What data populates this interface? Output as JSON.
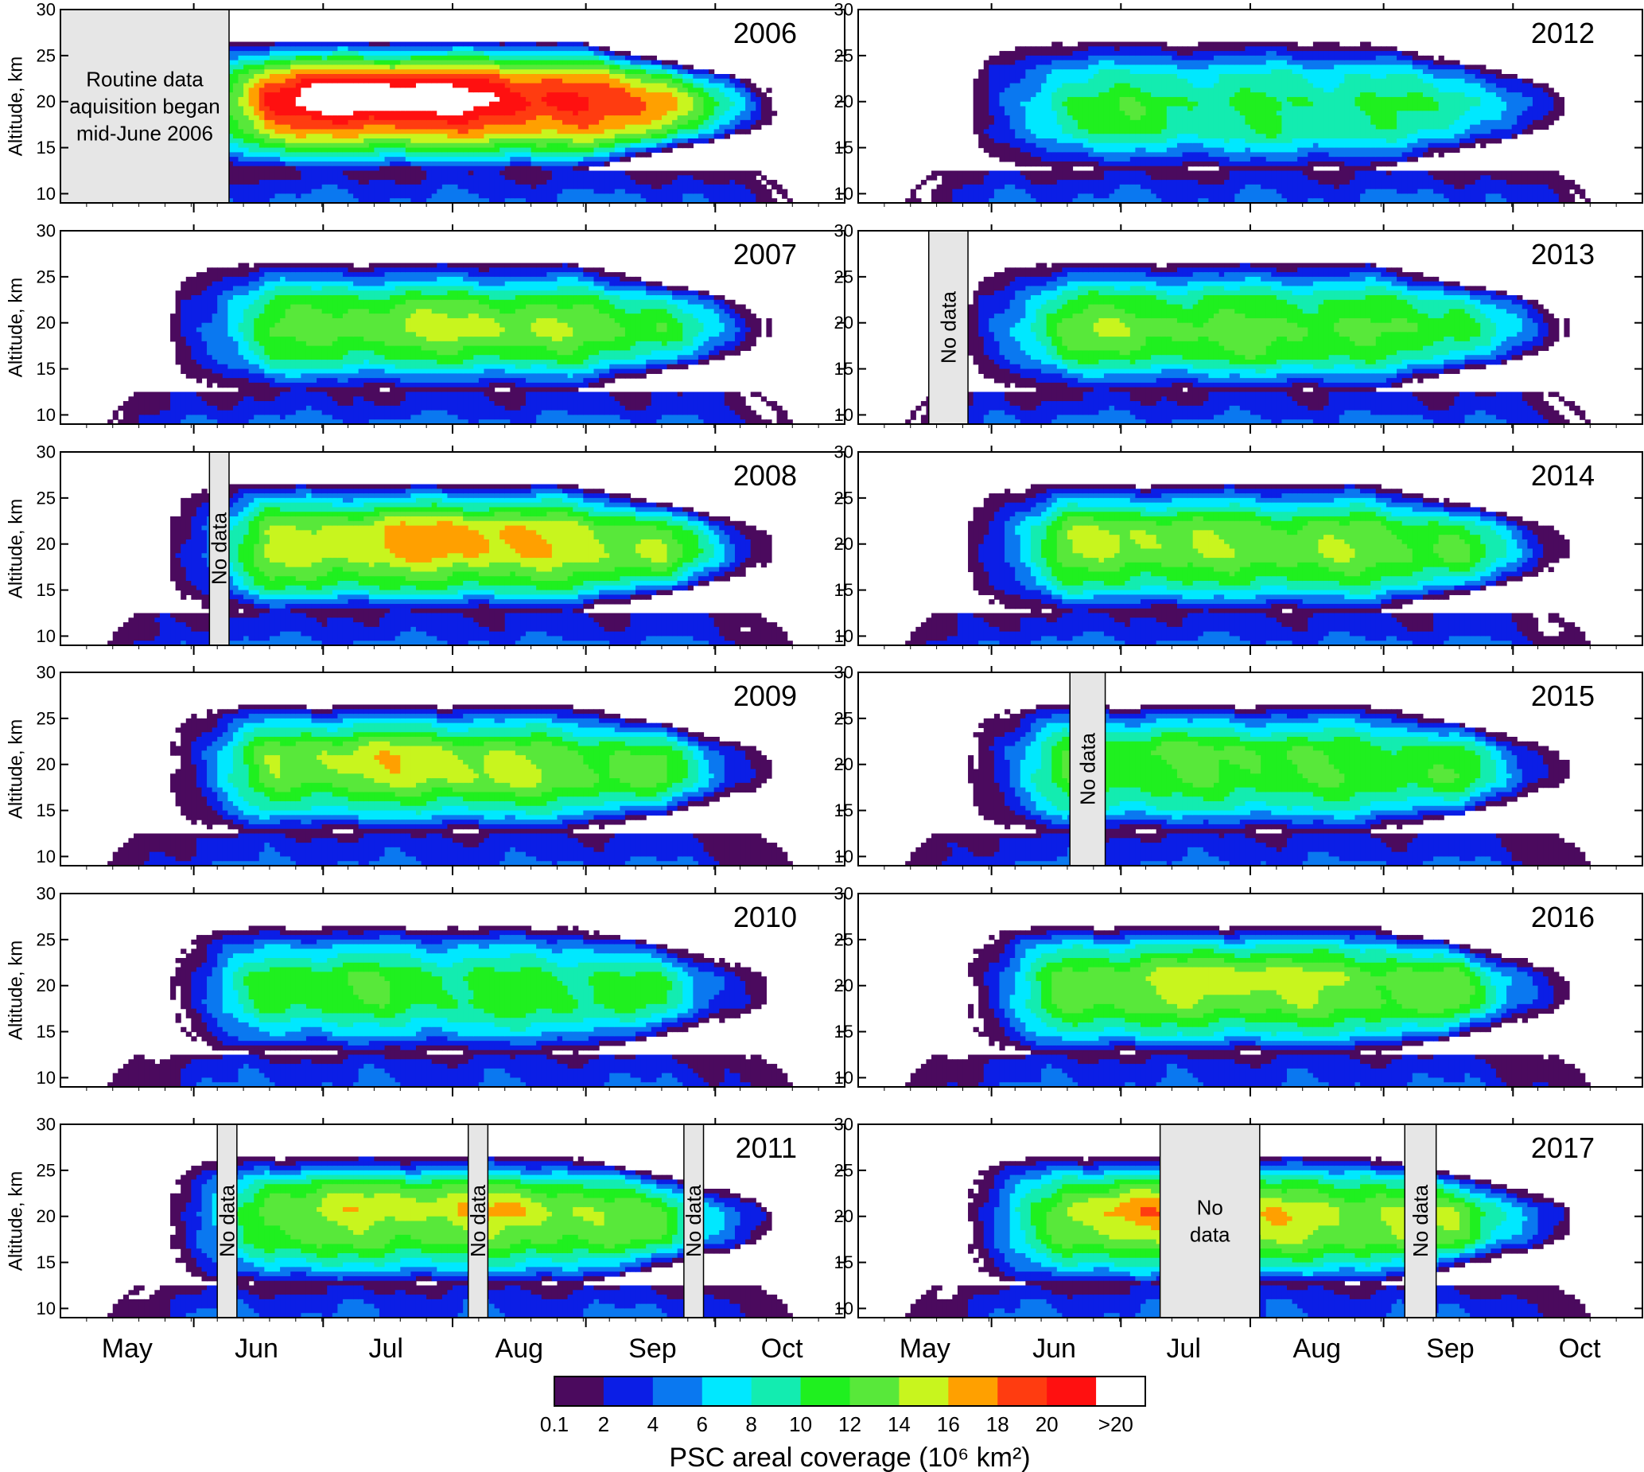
{
  "chart_data": {
    "type": "heatmap",
    "description_variable": "PSC areal coverage",
    "ylabel": "Altitude, km",
    "ylim": [
      9,
      30
    ],
    "yticks": [
      10,
      15,
      20,
      25,
      30
    ],
    "x_month_labels_left": [
      "May",
      "Jun",
      "Jul",
      "Aug",
      "Sep",
      "Oct"
    ],
    "x_month_labels_right": [
      "May",
      "Jun",
      "Jul",
      "Aug",
      "Sep",
      "Oct"
    ],
    "colorbar": {
      "title": "PSC areal coverage (10⁶ km²)",
      "levels": [
        "0.1",
        "2",
        "4",
        "6",
        "8",
        "10",
        "12",
        "14",
        "16",
        "18",
        "20",
        ">20"
      ],
      "colors": [
        "#4b0a5e",
        "#0b1ee6",
        "#0a78f0",
        "#00e8ff",
        "#13ecb0",
        "#1ff01f",
        "#58e83a",
        "#c8f51e",
        "#ffa000",
        "#ff3c10",
        "#ff1010",
        "#ffffff"
      ]
    },
    "panels": [
      {
        "year": "2006",
        "column": "left",
        "peak": 4.2,
        "hot": [
          [
            0.46,
            21,
            0.22,
            3.5,
            1.0
          ],
          [
            0.38,
            20.5,
            0.12,
            2.5,
            0.6
          ]
        ],
        "nodata": [
          {
            "from": 0.0,
            "to": 0.215,
            "text": "Routine data aquisition began mid-June 2006",
            "orientation": "horizontal"
          }
        ]
      },
      {
        "year": "2007",
        "column": "left",
        "peak": 2.9,
        "hot": [
          [
            0.47,
            20,
            0.15,
            3,
            0.5
          ],
          [
            0.6,
            19,
            0.12,
            3,
            0.3
          ]
        ],
        "nodata": []
      },
      {
        "year": "2008",
        "column": "left",
        "peak": 3.4,
        "hot": [
          [
            0.5,
            21,
            0.15,
            3,
            0.8
          ]
        ],
        "nodata": [
          {
            "from": 0.19,
            "to": 0.215,
            "text": "No data",
            "orientation": "vertical"
          }
        ]
      },
      {
        "year": "2009",
        "column": "left",
        "peak": 3.0,
        "hot": [
          [
            0.4,
            21,
            0.15,
            3,
            0.6
          ],
          [
            0.55,
            19,
            0.15,
            3,
            0.4
          ]
        ],
        "nodata": []
      },
      {
        "year": "2010",
        "column": "left",
        "peak": 2.6,
        "hot": [
          [
            0.28,
            20,
            0.1,
            3,
            0.3
          ],
          [
            0.4,
            20,
            0.08,
            3,
            0.3
          ],
          [
            0.62,
            18,
            0.1,
            3,
            0.2
          ]
        ],
        "nodata": []
      },
      {
        "year": "2011",
        "column": "left",
        "peak": 3.2,
        "hot": [
          [
            0.42,
            22,
            0.15,
            2.5,
            0.6
          ],
          [
            0.58,
            21,
            0.08,
            2.5,
            0.5
          ]
        ],
        "nodata": [
          {
            "from": 0.2,
            "to": 0.225,
            "text": "No data",
            "orientation": "vertical"
          },
          {
            "from": 0.52,
            "to": 0.545,
            "text": "No data",
            "orientation": "vertical"
          },
          {
            "from": 0.795,
            "to": 0.82,
            "text": "No data",
            "orientation": "vertical"
          }
        ]
      },
      {
        "year": "2012",
        "column": "right",
        "peak": 2.5,
        "hot": [
          [
            0.33,
            18,
            0.08,
            3,
            0.4
          ],
          [
            0.55,
            16,
            0.12,
            2.5,
            0.2
          ]
        ],
        "nodata": []
      },
      {
        "year": "2013",
        "column": "right",
        "peak": 2.9,
        "hot": [
          [
            0.3,
            19,
            0.12,
            3,
            0.4
          ],
          [
            0.52,
            17,
            0.1,
            3,
            0.3
          ]
        ],
        "nodata": [
          {
            "from": 0.09,
            "to": 0.14,
            "text": "No data",
            "orientation": "vertical"
          }
        ]
      },
      {
        "year": "2014",
        "column": "right",
        "peak": 3.1,
        "hot": [
          [
            0.35,
            21,
            0.12,
            2.5,
            0.5
          ],
          [
            0.58,
            20,
            0.08,
            2.5,
            0.3
          ]
        ],
        "nodata": []
      },
      {
        "year": "2015",
        "column": "right",
        "peak": 2.9,
        "hot": [
          [
            0.39,
            22,
            0.06,
            2,
            0.4
          ],
          [
            0.52,
            21,
            0.06,
            2,
            0.3
          ]
        ],
        "nodata": [
          {
            "from": 0.27,
            "to": 0.315,
            "text": "No data",
            "orientation": "vertical"
          }
        ]
      },
      {
        "year": "2016",
        "column": "right",
        "peak": 3.2,
        "hot": [
          [
            0.48,
            21,
            0.12,
            2.5,
            0.6
          ]
        ],
        "nodata": []
      },
      {
        "year": "2017",
        "column": "right",
        "peak": 3.4,
        "hot": [
          [
            0.36,
            21,
            0.08,
            2.5,
            0.7
          ],
          [
            0.53,
            20,
            0.06,
            2.5,
            0.3
          ]
        ],
        "nodata": [
          {
            "from": 0.385,
            "to": 0.512,
            "text": "No data",
            "orientation": "horizontal"
          },
          {
            "from": 0.697,
            "to": 0.737,
            "text": "No data",
            "orientation": "vertical"
          }
        ]
      }
    ]
  }
}
